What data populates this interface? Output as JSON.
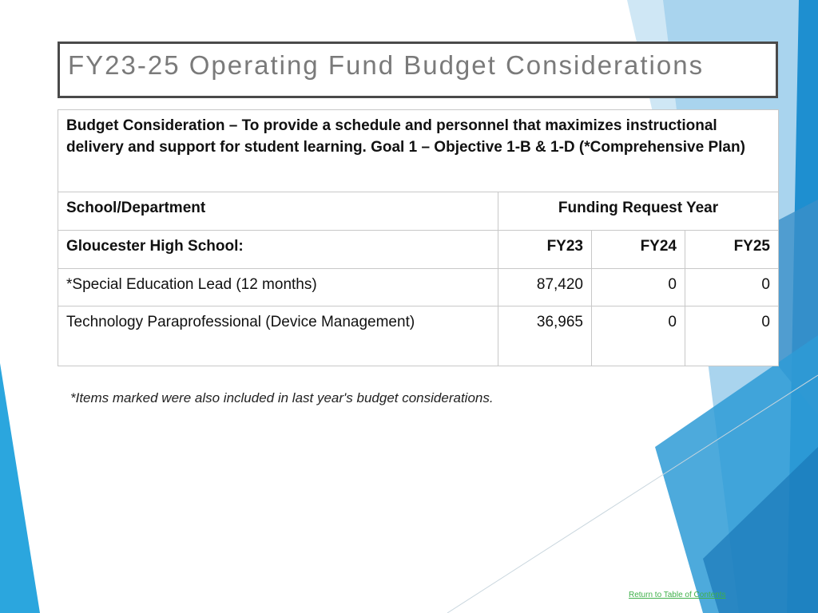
{
  "title": "FY23-25 Operating Fund Budget Considerations",
  "table": {
    "caption": "Budget Consideration – To provide a schedule and personnel that maximizes instructional delivery and support for student learning. Goal 1 – Objective 1-B & 1-D (*Comprehensive Plan)",
    "header": [
      "School/Department",
      "Funding Request Year"
    ],
    "rows": [
      [
        "Gloucester High School:",
        "FY23",
        "FY24",
        "FY25"
      ],
      [
        "*Special Education Lead (12 months)",
        "87,420",
        "0",
        "0"
      ],
      [
        "Technology Paraprofessional (Device Management)",
        "36,965",
        "0",
        "0"
      ]
    ]
  },
  "footnote": "*Items marked were also included in last year's budget considerations.",
  "link": "Return to Table of Contents"
}
